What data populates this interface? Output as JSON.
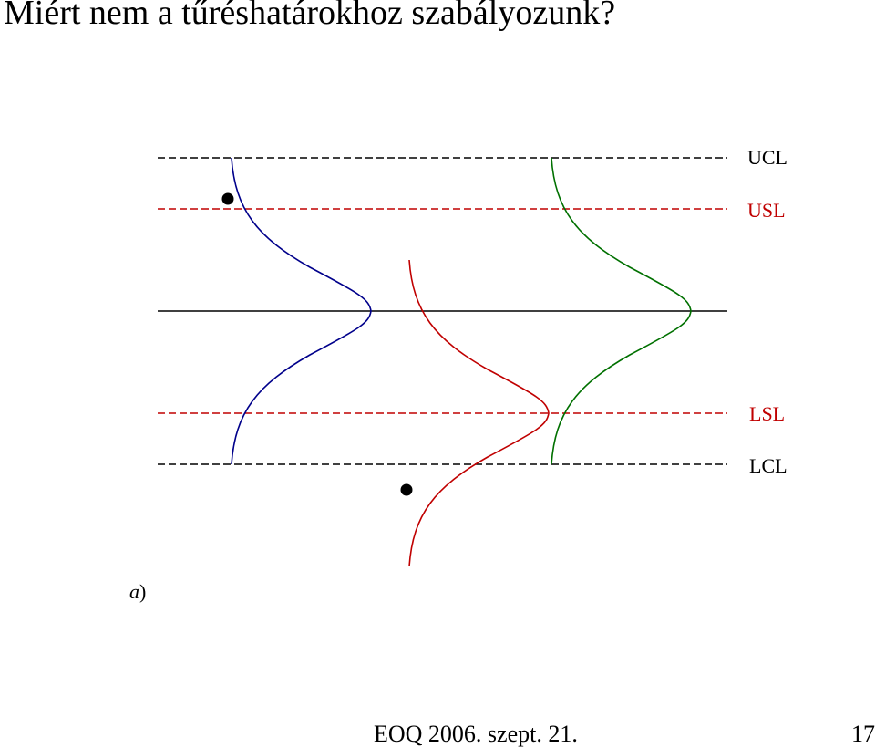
{
  "title": "Miért nem a tűréshatárokhoz szabályozunk?",
  "limit_lines": [
    {
      "id": "ucl",
      "label": "UCL",
      "color": "#000000",
      "style": "dashed"
    },
    {
      "id": "usl",
      "label": "USL",
      "color": "#c00000",
      "style": "dashed"
    },
    {
      "id": "center",
      "label": "",
      "color": "#000000",
      "style": "solid"
    },
    {
      "id": "lsl",
      "label": "LSL",
      "color": "#c00000",
      "style": "dashed"
    },
    {
      "id": "lcl",
      "label": "LCL",
      "color": "#000000",
      "style": "dashed"
    }
  ],
  "distributions": [
    {
      "name": "blue-curve",
      "color": "#00008b"
    },
    {
      "name": "red-curve",
      "color": "#c00000"
    },
    {
      "name": "green-curve",
      "color": "#007000"
    }
  ],
  "panel_label": {
    "letter": "a",
    "paren": ")"
  },
  "footer": {
    "text": "EOQ 2006. szept. 21.",
    "page": "17"
  }
}
